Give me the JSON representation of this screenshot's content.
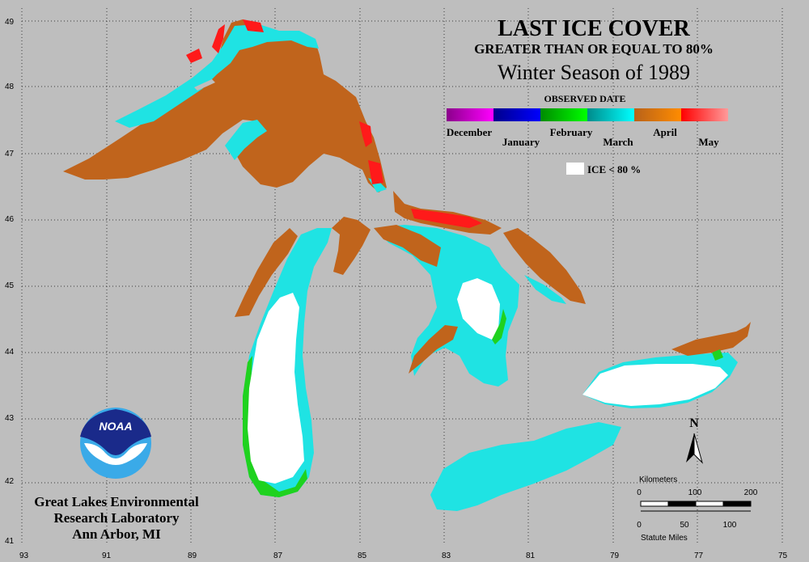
{
  "title": {
    "line1": "LAST ICE COVER",
    "line2": "GREATER THAN OR EQUAL TO 80%",
    "line3": "Winter Season of 1989"
  },
  "legend": {
    "heading": "OBSERVED DATE",
    "months": [
      {
        "label": "December",
        "colors": [
          "#8b008b",
          "#ff00ff"
        ]
      },
      {
        "label": "January",
        "colors": [
          "#00008b",
          "#0000ff"
        ]
      },
      {
        "label": "February",
        "colors": [
          "#008b00",
          "#00ff00"
        ]
      },
      {
        "label": "March",
        "colors": [
          "#008b8b",
          "#00ffff"
        ]
      },
      {
        "label": "April",
        "colors": [
          "#b8621a",
          "#ff8c00"
        ]
      },
      {
        "label": "May",
        "colors": [
          "#ff0000",
          "#ff9a9a"
        ]
      }
    ],
    "low_ice_label": "ICE < 80 %",
    "low_ice_color": "#ffffff"
  },
  "axes": {
    "latitude_labels": [
      "49",
      "48",
      "47",
      "46",
      "45",
      "44",
      "43",
      "42",
      "41"
    ],
    "longitude_labels": [
      "93",
      "91",
      "89",
      "87",
      "85",
      "83",
      "81",
      "79",
      "77",
      "75"
    ]
  },
  "scale_bar": {
    "km_title": "Kilometers",
    "km_ticks": [
      "0",
      "100",
      "200"
    ],
    "mi_ticks": [
      "0",
      "50",
      "100"
    ],
    "mi_title": "Statute Miles"
  },
  "north_arrow": {
    "label": "N"
  },
  "logo": {
    "text": "NOAA"
  },
  "credit": {
    "line1": "Great Lakes Environmental",
    "line2": "Research Laboratory",
    "line3": "Ann Arbor, MI"
  },
  "colors": {
    "background": "#bebebe",
    "april_brown": "#c0641c",
    "march_cyan": "#1fe3e3",
    "may_red": "#ff1a1a",
    "feb_green": "#1fd21f",
    "ice_white": "#ffffff",
    "noaa_blue": "#1a2a8a",
    "noaa_light": "#3aaae8"
  }
}
